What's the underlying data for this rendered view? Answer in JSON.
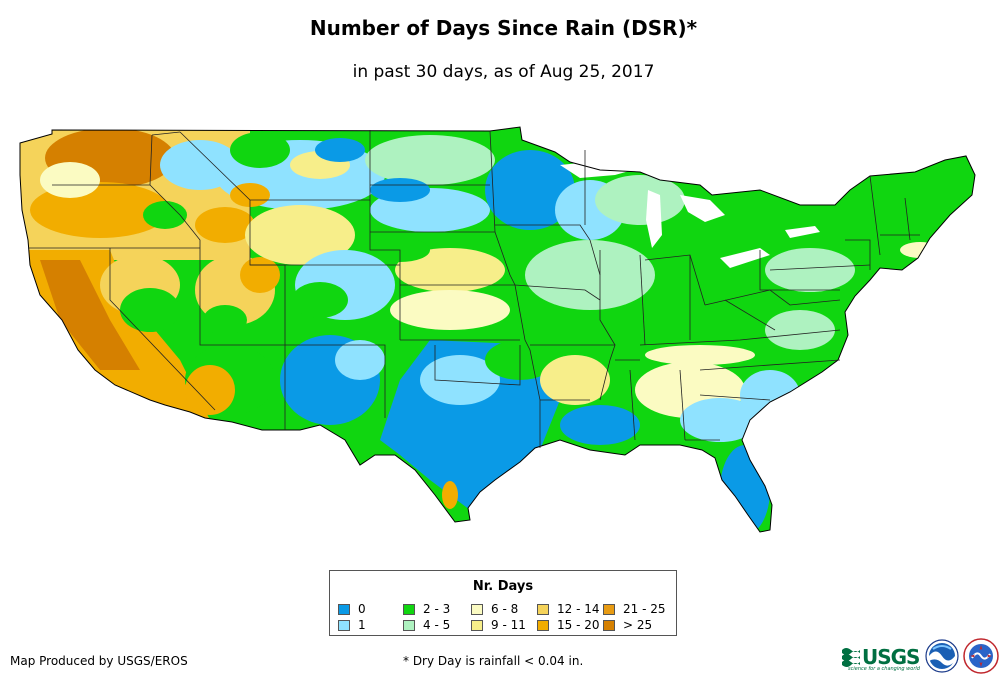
{
  "title": "Number of Days Since Rain (DSR)*",
  "subtitle": "in past 30 days, as of Aug 25, 2017",
  "legend": {
    "title": "Nr. Days",
    "items": [
      {
        "label": "0",
        "color": "#0a9ae6"
      },
      {
        "label": "1",
        "color": "#8fe2ff"
      },
      {
        "label": "2 - 3",
        "color": "#10d610"
      },
      {
        "label": "4 - 5",
        "color": "#aef2c0"
      },
      {
        "label": "6 - 8",
        "color": "#fbfbc2"
      },
      {
        "label": "9 - 11",
        "color": "#f7ee8a"
      },
      {
        "label": "12 - 14",
        "color": "#f5d35a"
      },
      {
        "label": "15 - 20",
        "color": "#f2ad00"
      },
      {
        "label": "21 - 25",
        "color": "#e89b12"
      },
      {
        "label": "> 25",
        "color": "#d58000"
      }
    ]
  },
  "credit": "Map Produced by USGS/EROS",
  "footnote": "* Dry Day is rainfall < 0.04 in.",
  "logos": {
    "usgs_word": "USGS",
    "usgs_tagline": "science for a changing world",
    "noaa_icon": "noaa-logo-icon",
    "nws_icon": "nws-logo-icon"
  }
}
